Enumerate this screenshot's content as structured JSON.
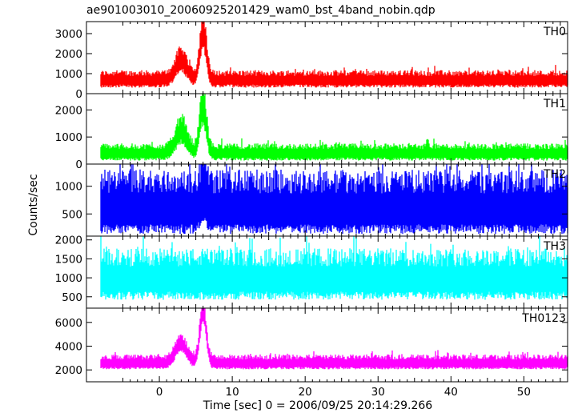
{
  "chart_data": {
    "type": "line",
    "title": "ae901003010_20060925201429_wam0_bst_4band_nobin.qdp",
    "xlabel": "Time [sec] 0 = 2006/09/25 20:14:29.266",
    "ylabel": "Counts/sec",
    "xlim": [
      -10,
      56
    ],
    "xticks": [
      0,
      10,
      20,
      30,
      40,
      50
    ],
    "grid": false,
    "panels": [
      {
        "name": "TH0",
        "color": "#ff0000",
        "ylim": [
          0,
          3600
        ],
        "yticks": [
          0,
          1000,
          2000,
          3000
        ],
        "baseline": 650,
        "noise_lo": 350,
        "noise_hi": 520,
        "peaks": [
          {
            "t": 3.0,
            "amp": 950,
            "w": 0.8
          },
          {
            "t": 6.0,
            "amp": 2300,
            "w": 0.45
          }
        ],
        "series_summary": {
          "baseline_counts_per_sec": 650,
          "peak_time_sec": 6.0,
          "peak_counts_per_sec": 3500
        }
      },
      {
        "name": "TH1",
        "color": "#00ff00",
        "ylim": [
          0,
          2600
        ],
        "yticks": [
          0,
          1000,
          2000
        ],
        "baseline": 380,
        "noise_lo": 250,
        "noise_hi": 380,
        "peaks": [
          {
            "t": 3.0,
            "amp": 800,
            "w": 0.8
          },
          {
            "t": 6.0,
            "amp": 1700,
            "w": 0.45
          }
        ],
        "series_summary": {
          "baseline_counts_per_sec": 380,
          "peak_time_sec": 6.0,
          "peak_counts_per_sec": 2500
        }
      },
      {
        "name": "TH2",
        "color": "#0000ff",
        "ylim": [
          100,
          1400
        ],
        "yticks": [
          500,
          1000
        ],
        "baseline": 520,
        "noise_lo": 380,
        "noise_hi": 780,
        "peaks": [
          {
            "t": 6.0,
            "amp": 250,
            "w": 0.4
          }
        ],
        "series_summary": {
          "baseline_counts_per_sec": 520,
          "peak_time_sec": 6.0,
          "peak_counts_per_sec": 1400
        }
      },
      {
        "name": "TH3",
        "color": "#00ffff",
        "ylim": [
          200,
          2100
        ],
        "yticks": [
          500,
          1000,
          1500,
          2000
        ],
        "baseline": 900,
        "noise_lo": 480,
        "noise_hi": 880,
        "peaks": [],
        "series_summary": {
          "baseline_counts_per_sec": 900,
          "peak_time_sec": null,
          "peak_counts_per_sec": 2000
        }
      },
      {
        "name": "TH0123",
        "color": "#ff00ff",
        "ylim": [
          1000,
          7200
        ],
        "yticks": [
          2000,
          4000,
          6000
        ],
        "baseline": 2500,
        "noise_lo": 450,
        "noise_hi": 800,
        "peaks": [
          {
            "t": 3.0,
            "amp": 1600,
            "w": 0.8
          },
          {
            "t": 6.0,
            "amp": 4200,
            "w": 0.45
          }
        ],
        "series_summary": {
          "baseline_counts_per_sec": 2500,
          "peak_time_sec": 6.0,
          "peak_counts_per_sec": 7200
        }
      }
    ]
  }
}
